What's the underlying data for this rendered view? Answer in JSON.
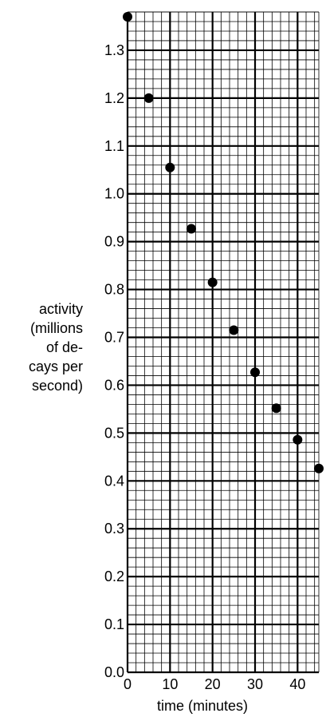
{
  "chart_data": {
    "type": "scatter",
    "title": "",
    "xlabel": "time (minutes)",
    "ylabel_lines": [
      "activity",
      "(millions",
      "of de-",
      "cays per",
      "second)"
    ],
    "xlim": [
      0,
      45
    ],
    "ylim": [
      0.0,
      1.38
    ],
    "x_ticks": [
      0,
      10,
      20,
      30,
      40
    ],
    "x_tick_labels": [
      "0",
      "10",
      "20",
      "30",
      "40"
    ],
    "y_ticks": [
      0.0,
      0.1,
      0.2,
      0.3,
      0.4,
      0.5,
      0.6,
      0.7,
      0.8,
      0.9,
      1.0,
      1.1,
      1.2,
      1.3
    ],
    "y_tick_labels": [
      "0.0",
      "0.1",
      "0.2",
      "0.3",
      "0.4",
      "0.5",
      "0.6",
      "0.7",
      "0.8",
      "0.9",
      "1.0",
      "1.1",
      "1.2",
      "1.3"
    ],
    "grid": true,
    "x": [
      0,
      5,
      10,
      15,
      20,
      25,
      30,
      35,
      40,
      45
    ],
    "values": [
      1.37,
      1.2,
      1.055,
      0.927,
      0.815,
      0.715,
      0.627,
      0.552,
      0.486,
      0.426
    ],
    "colors": {
      "grid_major": "#000000",
      "grid_minor": "#000000",
      "marker": "#000000",
      "background": "#ffffff"
    }
  }
}
